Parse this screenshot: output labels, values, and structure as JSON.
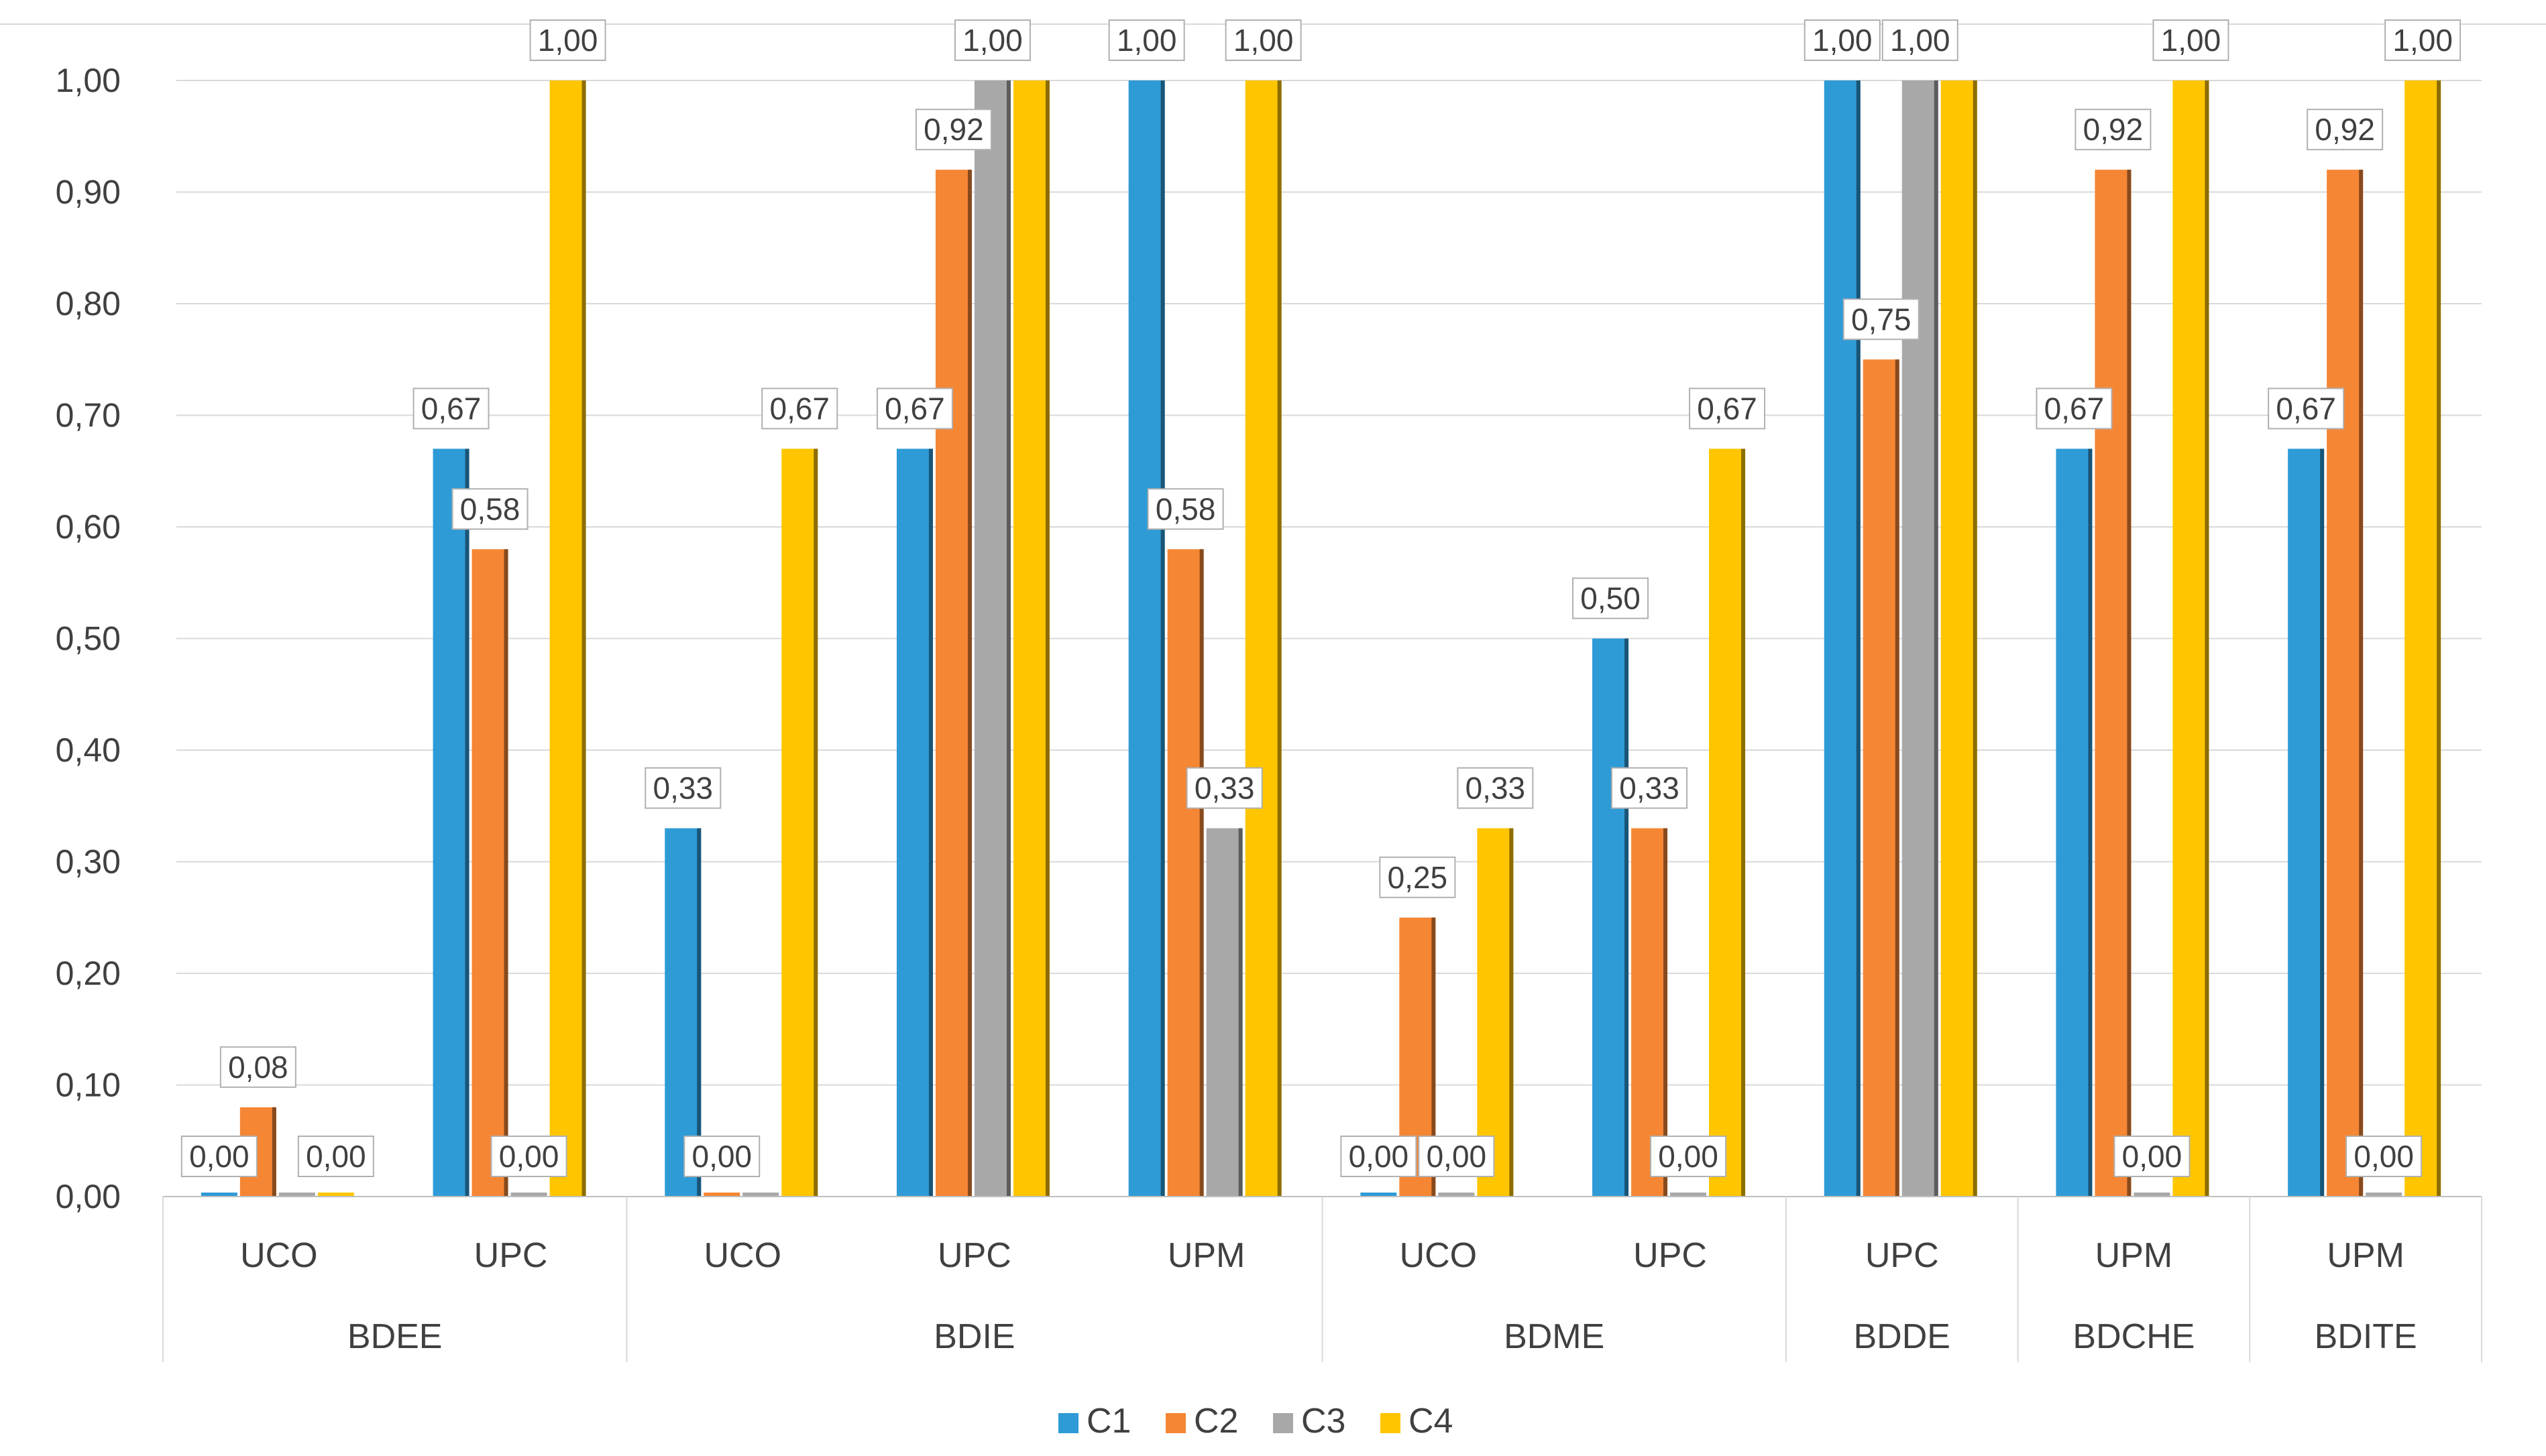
{
  "chart_data": {
    "type": "bar",
    "title": "",
    "xlabel": "",
    "ylabel": "",
    "ylim": [
      0,
      1
    ],
    "yticks": [
      "0,00",
      "0,10",
      "0,20",
      "0,30",
      "0,40",
      "0,50",
      "0,60",
      "0,70",
      "0,80",
      "0,90",
      "1,00"
    ],
    "grid": true,
    "legend_position": "bottom",
    "series": [
      {
        "name": "C1",
        "color": "#2E9BD6"
      },
      {
        "name": "C2",
        "color": "#F58634"
      },
      {
        "name": "C3",
        "color": "#A8A8A8"
      },
      {
        "name": "C4",
        "color": "#FFC600"
      }
    ],
    "groups": [
      {
        "name": "BDEE",
        "categories": [
          {
            "name": "UCO",
            "values": [
              0.0,
              0.08,
              0.0,
              0.0
            ],
            "labels": [
              "0,00",
              "0,08",
              "",
              "0,00"
            ]
          },
          {
            "name": "UPC",
            "values": [
              0.67,
              0.58,
              0.0,
              1.0
            ],
            "labels": [
              "0,67",
              "0,58",
              "0,00",
              "1,00"
            ]
          }
        ]
      },
      {
        "name": "BDIE",
        "categories": [
          {
            "name": "UCO",
            "values": [
              0.33,
              0.0,
              0.0,
              0.67
            ],
            "labels": [
              "0,33",
              "0,00",
              "",
              "0,67"
            ]
          },
          {
            "name": "UPC",
            "values": [
              0.67,
              0.92,
              1.0,
              1.0
            ],
            "labels": [
              "0,67",
              "0,92",
              "1,00",
              ""
            ]
          },
          {
            "name": "UPM",
            "values": [
              1.0,
              0.58,
              0.33,
              1.0
            ],
            "labels": [
              "1,00",
              "0,58",
              "0,33",
              "1,00"
            ]
          }
        ]
      },
      {
        "name": "BDME",
        "categories": [
          {
            "name": "UCO",
            "values": [
              0.0,
              0.25,
              0.0,
              0.33
            ],
            "labels": [
              "0,00",
              "0,25",
              "0,00",
              "0,33"
            ]
          },
          {
            "name": "UPC",
            "values": [
              0.5,
              0.33,
              0.0,
              0.67
            ],
            "labels": [
              "0,50",
              "0,33",
              "0,00",
              "0,67"
            ]
          }
        ]
      },
      {
        "name": "BDDE",
        "categories": [
          {
            "name": "UPC",
            "values": [
              1.0,
              0.75,
              1.0,
              1.0
            ],
            "labels": [
              "1,00",
              "0,75",
              "1,00",
              ""
            ]
          }
        ]
      },
      {
        "name": "BDCHE",
        "categories": [
          {
            "name": "UPM",
            "values": [
              0.67,
              0.92,
              0.0,
              1.0
            ],
            "labels": [
              "0,67",
              "0,92",
              "0,00",
              "1,00"
            ]
          }
        ]
      },
      {
        "name": "BDITE",
        "categories": [
          {
            "name": "UPM",
            "values": [
              0.67,
              0.92,
              0.0,
              1.0
            ],
            "labels": [
              "0,67",
              "0,92",
              "0,00",
              "1,00"
            ]
          }
        ]
      }
    ]
  }
}
